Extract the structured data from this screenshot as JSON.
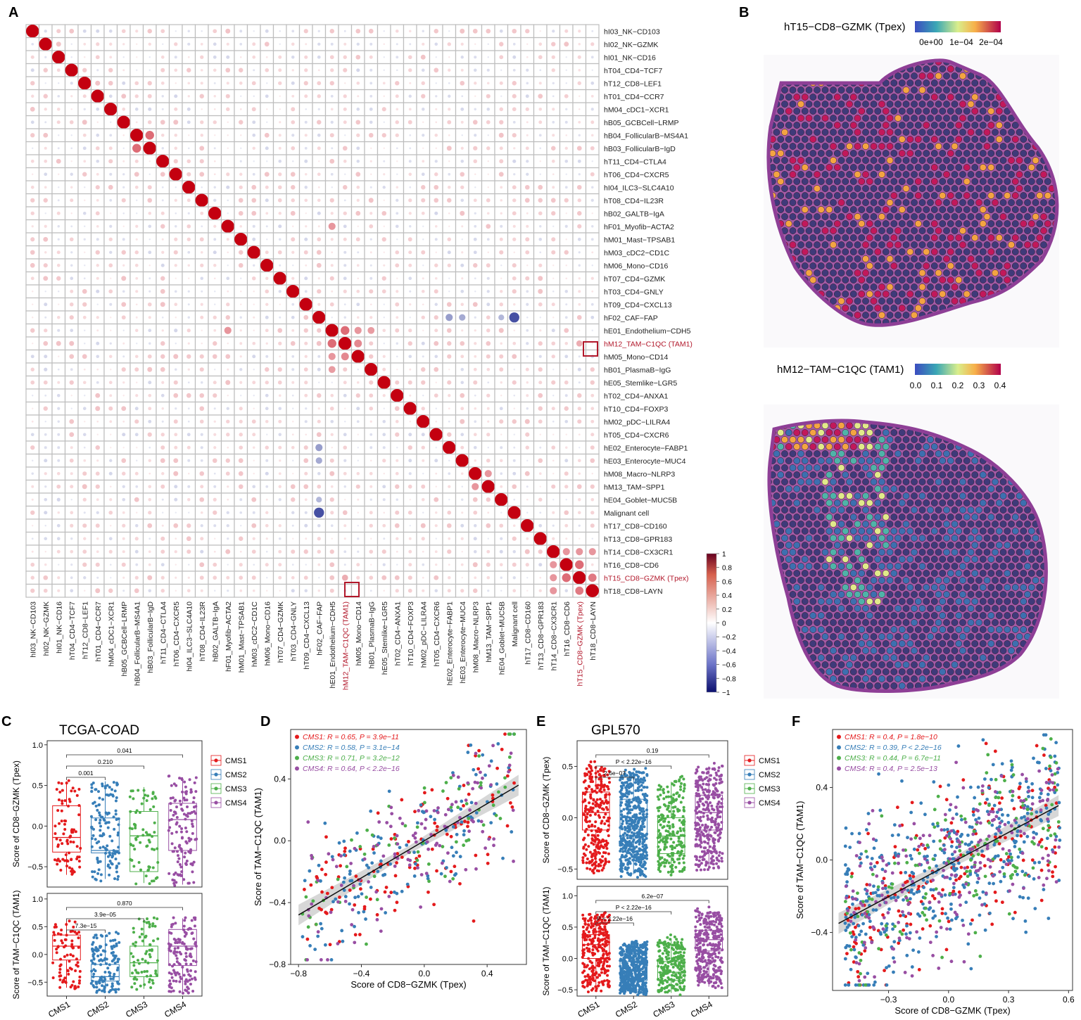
{
  "panel_letters": {
    "A": "A",
    "B": "B",
    "C": "C",
    "D": "D",
    "E": "E",
    "F": "F"
  },
  "colors": {
    "cms1": "#e41a1c",
    "cms2": "#377eb8",
    "cms3": "#4daf4a",
    "cms4": "#984ea3",
    "pos": "#c40010",
    "neg": "#1d2a8f",
    "highlight": "#b2182b",
    "grid": "#bdbdbd",
    "tissue": "#a55aa8",
    "spot": "#3b2f6e"
  },
  "chart_data": [
    {
      "id": "A",
      "type": "heatmap",
      "title": "",
      "labels": [
        "hI03_NK−CD103",
        "hI02_NK−GZMK",
        "hI01_NK−CD16",
        "hT04_CD4−TCF7",
        "hT12_CD8−LEF1",
        "hT01_CD4−CCR7",
        "hM04_cDC1−XCR1",
        "hB05_GCBCell−LRMP",
        "hB04_FollicularB−MS4A1",
        "hB03_FollicularB−IgD",
        "hT11_CD4−CTLA4",
        "hT06_CD4−CXCR5",
        "hI04_ILC3−SLC4A10",
        "hT08_CD4−IL23R",
        "hB02_GALTB−IgA",
        "hF01_Myofib−ACTA2",
        "hM01_Mast−TPSAB1",
        "hM03_cDC2−CD1C",
        "hM06_Mono−CD16",
        "hT07_CD4−GZMK",
        "hT03_CD4−GNLY",
        "hT09_CD4−CXCL13",
        "hF02_CAF−FAP",
        "hE01_Endothelium−CDH5",
        "hM12_TAM−C1QC (TAM1)",
        "hM05_Mono−CD14",
        "hB01_PlasmaB−IgG",
        "hE05_Stemlike−LGR5",
        "hT02_CD4−ANXA1",
        "hT10_CD4−FOXP3",
        "hM02_pDC−LILRA4",
        "hT05_CD4−CXCR6",
        "hE02_Enterocyte−FABP1",
        "hE03_Enterocyte−MUC4",
        "hM08_Macro−NLRP3",
        "hM13_TAM−SPP1",
        "hE04_Goblet−MUC5B",
        "Malignant cell",
        "hT17_CD8−CD160",
        "hT13_CD8−GPR183",
        "hT14_CD8−CX3CR1",
        "hT16_CD8−CD6",
        "hT15_CD8−GZMK (Tpex)",
        "hT18_CD8−LAYN"
      ],
      "highlighted": [
        "hM12_TAM−C1QC (TAM1)",
        "hT15_CD8−GZMK (Tpex)"
      ],
      "strong_correlations": [
        [
          "hB04_FollicularB−MS4A1",
          "hB03_FollicularB−IgD",
          0.45
        ],
        [
          "hF02_CAF−FAP",
          "Malignant cell",
          -0.6
        ],
        [
          "hF02_CAF−FAP",
          "hE02_Enterocyte−FABP1",
          -0.3
        ],
        [
          "hF02_CAF−FAP",
          "hE03_Enterocyte−MUC4",
          -0.25
        ],
        [
          "hF02_CAF−FAP",
          "hE04_Goblet−MUC5B",
          -0.2
        ],
        [
          "hE01_Endothelium−CDH5",
          "hM12_TAM−C1QC (TAM1)",
          0.45
        ],
        [
          "hE01_Endothelium−CDH5",
          "hM05_Mono−CD14",
          0.3
        ],
        [
          "hE01_Endothelium−CDH5",
          "hB01_PlasmaB−IgG",
          0.28
        ],
        [
          "hF01_Myofib−ACTA2",
          "hE01_Endothelium−CDH5",
          0.3
        ],
        [
          "hM12_TAM−C1QC (TAM1)",
          "hM05_Mono−CD14",
          0.35
        ],
        [
          "hM12_TAM−C1QC (TAM1)",
          "hT15_CD8−GZMK (Tpex)",
          0.22
        ],
        [
          "hM08_Macro−NLRP3",
          "hM13_TAM−SPP1",
          0.3
        ],
        [
          "hT14_CD8−CX3CR1",
          "hT16_CD8−CD6",
          0.3
        ],
        [
          "hT16_CD8−CD6",
          "hT15_CD8−GZMK (Tpex)",
          0.45
        ],
        [
          "hT15_CD8−GZMK (Tpex)",
          "hT18_CD8−LAYN",
          0.4
        ],
        [
          "hT14_CD8−CX3CR1",
          "hT18_CD8−LAYN",
          0.3
        ],
        [
          "hT14_CD8−CX3CR1",
          "hT15_CD8−GZMK (Tpex)",
          0.3
        ]
      ],
      "colorbar": {
        "min": -1,
        "max": 1,
        "ticks": [
          "1",
          "0.8",
          "0.6",
          "0.4",
          "0.2",
          "0",
          "−0.2",
          "−0.4",
          "−0.6",
          "−0.8",
          "−1"
        ]
      }
    },
    {
      "id": "B",
      "type": "heatmap",
      "maps": [
        {
          "title": "hT15−CD8−GZMK (Tpex)",
          "legend_ticks": [
            "0e+00",
            "1e−04",
            "2e−04"
          ]
        },
        {
          "title": "hM12−TAM−C1QC (TAM1)",
          "legend_ticks": [
            "0.0",
            "0.1",
            "0.2",
            "0.3",
            "0.4"
          ]
        }
      ]
    },
    {
      "id": "C",
      "type": "box",
      "title": "TCGA-COAD",
      "categories": [
        "CMS1",
        "CMS2",
        "CMS3",
        "CMS4"
      ],
      "legend": [
        "CMS1",
        "CMS2",
        "CMS3",
        "CMS4"
      ],
      "subplots": [
        {
          "ylabel": "Score of CD8−GZMK (Tpex)",
          "ylim": [
            -0.75,
            1.05
          ],
          "yticks": [
            "1.0",
            "0.5",
            "0.0",
            "−0.5"
          ],
          "ytick_values": [
            1,
            0.5,
            0,
            -0.5
          ],
          "stats": [
            {
              "q1": -0.32,
              "med": -0.14,
              "q3": 0.25,
              "lo": -0.6,
              "hi": 0.55
            },
            {
              "q1": -0.33,
              "med": -0.3,
              "q3": 0.1,
              "lo": -0.65,
              "hi": 0.55
            },
            {
              "q1": -0.56,
              "med": -0.12,
              "q3": 0.18,
              "lo": -0.7,
              "hi": 0.48
            },
            {
              "q1": -0.3,
              "med": 0.08,
              "q3": 0.28,
              "lo": -0.72,
              "hi": 0.6
            }
          ],
          "brackets": [
            {
              "from": 0,
              "to": 1,
              "label": "0.001"
            },
            {
              "from": 0,
              "to": 2,
              "label": "0.210"
            },
            {
              "from": 0,
              "to": 3,
              "label": "0.041"
            }
          ]
        },
        {
          "ylabel": "Score of TAM−C1QC (TAM1)",
          "ylim": [
            -0.75,
            1.1
          ],
          "yticks": [
            "1.0",
            "0.5",
            "0.0",
            "−0.5"
          ],
          "ytick_values": [
            1,
            0.5,
            0,
            -0.5
          ],
          "stats": [
            {
              "q1": -0.1,
              "med": 0.15,
              "q3": 0.35,
              "lo": -0.6,
              "hi": 0.6
            },
            {
              "q1": -0.48,
              "med": -0.4,
              "q3": -0.18,
              "lo": -0.68,
              "hi": 0.35
            },
            {
              "q1": -0.4,
              "med": -0.15,
              "q3": 0.15,
              "lo": -0.62,
              "hi": 0.62
            },
            {
              "q1": -0.2,
              "med": 0.15,
              "q3": 0.45,
              "lo": -0.72,
              "hi": 0.65
            }
          ],
          "brackets": [
            {
              "from": 0,
              "to": 1,
              "label": "7.3e−15"
            },
            {
              "from": 0,
              "to": 2,
              "label": "3.9e−05"
            },
            {
              "from": 0,
              "to": 3,
              "label": "0.870"
            }
          ]
        }
      ]
    },
    {
      "id": "D",
      "type": "scatter",
      "xlabel": "Score of CD8−GZMK (Tpex)",
      "ylabel": "Score of TAM−C1QC (TAM1)",
      "xlim": [
        -0.85,
        0.65
      ],
      "ylim": [
        -0.8,
        0.72
      ],
      "xticks": [
        "−0.8",
        "−0.4",
        "0.0",
        "0.4"
      ],
      "xtick_values": [
        -0.8,
        -0.4,
        0,
        0.4
      ],
      "yticks": [
        "0.4",
        "0.0",
        "−0.4",
        "−0.8"
      ],
      "ytick_values": [
        0.4,
        0,
        -0.4,
        -0.8
      ],
      "fit": {
        "x0": -0.8,
        "y0": -0.48,
        "x1": 0.6,
        "y1": 0.36
      },
      "series": [
        {
          "name": "CMS1",
          "stat": "CMS1: R = 0.65, P = 3.9e−11"
        },
        {
          "name": "CMS2",
          "stat": "CMS2: R = 0.58, P = 3.1e−14"
        },
        {
          "name": "CMS3",
          "stat": "CMS3: R = 0.71, P = 3.2e−12"
        },
        {
          "name": "CMS4",
          "stat": "CMS4: R = 0.64, P < 2.2e−16"
        }
      ]
    },
    {
      "id": "E",
      "type": "box",
      "title": "GPL570",
      "categories": [
        "CMS1",
        "CMS2",
        "CMS3",
        "CMS4"
      ],
      "legend": [
        "CMS1",
        "CMS2",
        "CMS3",
        "CMS4"
      ],
      "subplots": [
        {
          "ylabel": "Score of CD8−GZMK (Tpex)",
          "ylim": [
            -0.6,
            0.75
          ],
          "yticks": [
            "0.5",
            "0.0",
            "−0.5"
          ],
          "ytick_values": [
            0.5,
            0,
            -0.5
          ],
          "stats": [
            {
              "q1": -0.12,
              "med": 0.05,
              "q3": 0.25,
              "lo": -0.5,
              "hi": 0.5
            },
            {
              "q1": -0.18,
              "med": 0.0,
              "q3": 0.18,
              "lo": -0.55,
              "hi": 0.45
            },
            {
              "q1": -0.35,
              "med": -0.18,
              "q3": 0.0,
              "lo": -0.55,
              "hi": 0.35
            },
            {
              "q1": -0.12,
              "med": 0.05,
              "q3": 0.22,
              "lo": -0.5,
              "hi": 0.5
            }
          ],
          "brackets": [
            {
              "from": 0,
              "to": 1,
              "label": "2.6e−07"
            },
            {
              "from": 0,
              "to": 2,
              "label": "P < 2.22e−16"
            },
            {
              "from": 0,
              "to": 3,
              "label": "0.19"
            }
          ]
        },
        {
          "ylabel": "Score of TAM−C1QC (TAM1)",
          "ylim": [
            -0.6,
            1.15
          ],
          "yticks": [
            "1.0",
            "0.5",
            "0.0",
            "−0.5"
          ],
          "ytick_values": [
            1,
            0.5,
            0,
            -0.5
          ],
          "stats": [
            {
              "q1": 0.0,
              "med": 0.22,
              "q3": 0.38,
              "lo": -0.5,
              "hi": 0.7
            },
            {
              "q1": -0.35,
              "med": -0.2,
              "q3": -0.05,
              "lo": -0.55,
              "hi": 0.25
            },
            {
              "q1": -0.35,
              "med": -0.22,
              "q3": -0.05,
              "lo": -0.55,
              "hi": 0.3
            },
            {
              "q1": 0.12,
              "med": 0.3,
              "q3": 0.45,
              "lo": -0.45,
              "hi": 0.75
            }
          ],
          "brackets": [
            {
              "from": 0,
              "to": 1,
              "label": "P < 2.22e−16"
            },
            {
              "from": 0,
              "to": 2,
              "label": "P < 2.22e−16"
            },
            {
              "from": 0,
              "to": 3,
              "label": "6.2e−07"
            }
          ]
        }
      ]
    },
    {
      "id": "F",
      "type": "scatter",
      "xlabel": "Score of CD8−GZMK (Tpex)",
      "ylabel": "Score of TAM−C1QC (TAM1)",
      "xlim": [
        -0.58,
        0.62
      ],
      "ylim": [
        -0.72,
        0.72
      ],
      "xticks": [
        "−0.3",
        "0.0",
        "0.3",
        "0.6"
      ],
      "xtick_values": [
        -0.3,
        0,
        0.3,
        0.6
      ],
      "yticks": [
        "0.4",
        "0.0",
        "−0.4"
      ],
      "ytick_values": [
        0.4,
        0,
        -0.4
      ],
      "fit": {
        "x0": -0.55,
        "y0": -0.35,
        "x1": 0.55,
        "y1": 0.3
      },
      "series": [
        {
          "name": "CMS1",
          "stat": "CMS1: R = 0.4, P = 1.8e−10"
        },
        {
          "name": "CMS2",
          "stat": "CMS2: R = 0.39, P < 2.2e−16"
        },
        {
          "name": "CMS3",
          "stat": "CMS3: R = 0.44, P = 6.7e−11"
        },
        {
          "name": "CMS4",
          "stat": "CMS4: R = 0.4, P = 2.5e−13"
        }
      ]
    }
  ]
}
